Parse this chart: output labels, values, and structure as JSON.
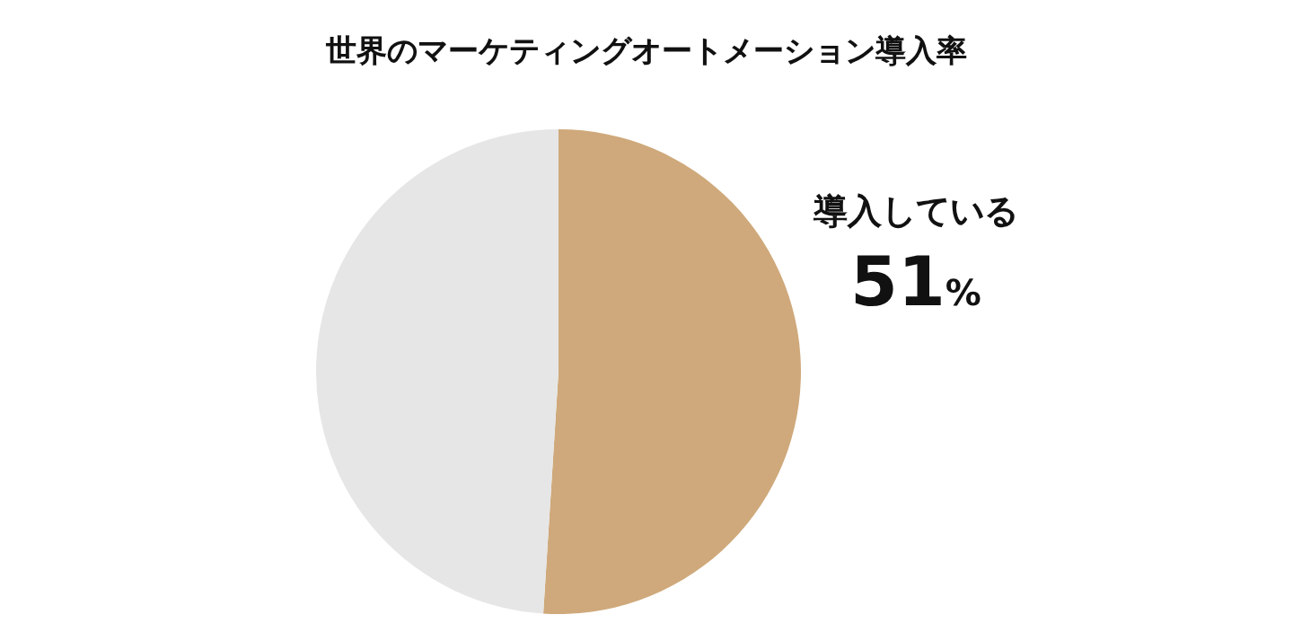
{
  "chart_data": {
    "type": "pie",
    "title": "世界のマーケティングオートメーション導入率",
    "categories": [
      "導入している",
      null
    ],
    "values": [
      51,
      49
    ],
    "colors": [
      "#cfa97b",
      "#e6e6e6"
    ],
    "value_labels": [
      "51%",
      null
    ]
  }
}
